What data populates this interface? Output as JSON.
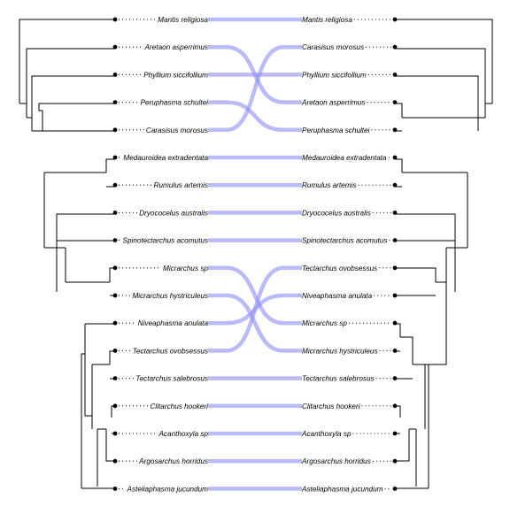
{
  "left_tree": {
    "tips": [
      "Mantis religiosa",
      "Aretaon asperrimus",
      "Phyllium siccifollium",
      "Peruphasma schultei",
      "Carasisus morosus",
      "Medauroidea extradentata",
      "Rumulus artemis",
      "Dryococelus australis",
      "Spinotectarchus acomutus",
      "Micrarchus sp",
      "Micrarchus hystriculeus",
      "Niveaphasma anulata",
      "Tectarchus ovobsessus",
      "Tectarchus salebrosus",
      "Clitarchus hookeri",
      "Acanthoxyla sp",
      "Argosarchus horridus",
      "Asteliaphasma jucundum"
    ]
  },
  "right_tree": {
    "tips": [
      "Mantis religiosa",
      "Carasisus morosus",
      "Phyllium siccifollium",
      "Aretaon asperrimus",
      "Peruphasma schultei",
      "Medauroidea extradentata",
      "Rumulus artemis",
      "Dryococelus australis",
      "Spinotectarchus acomutus",
      "Tectarchus ovobsessus",
      "Niveaphasma anulata",
      "Micrarchus sp",
      "Micrarchus hystriculeus",
      "Tectarchus salebrosus",
      "Clitarchus hookeri",
      "Acanthoxyla sp",
      "Argosarchus horridus",
      "Asteliaphasma jucundum"
    ]
  },
  "colors": {
    "link": "#8f8ff4",
    "branch": "#000000",
    "background": "#ffffff"
  }
}
